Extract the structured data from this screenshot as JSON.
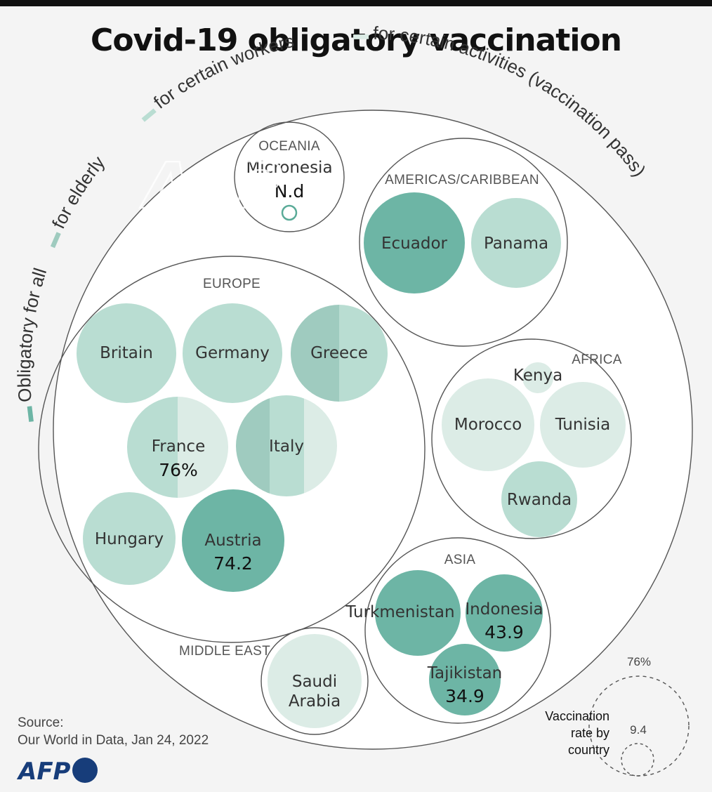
{
  "title": "Covid-19 obligatory vaccination",
  "colors": {
    "obligatory_for_all": "#6db5a5",
    "for_elderly": "#9fcbbf",
    "for_certain_workers": "#b9ddd2",
    "for_certain_activities": "#dcece6",
    "background": "#f4f4f4",
    "outline": "#555555",
    "afp_blue": "#173d7a"
  },
  "legend": [
    {
      "key": "obligatory_for_all",
      "label": "Obligatory  for all"
    },
    {
      "key": "for_elderly",
      "label": "for elderly"
    },
    {
      "key": "for_certain_workers",
      "label": "for certain workers"
    },
    {
      "key": "for_certain_activities",
      "label": "for certain activities (vaccination pass)"
    }
  ],
  "regions": {
    "oceania": "OCEANIA",
    "americas": "AMERICAS/CARIBBEAN",
    "europe": "EUROPE",
    "africa": "AFRICA",
    "asia": "ASIA",
    "middle_east": "MIDDLE EAST"
  },
  "countries": {
    "micronesia": {
      "name": "Micronesia",
      "value": "N.d"
    },
    "ecuador": {
      "name": "Ecuador"
    },
    "panama": {
      "name": "Panama"
    },
    "britain": {
      "name": "Britain"
    },
    "germany": {
      "name": "Germany"
    },
    "greece": {
      "name": "Greece"
    },
    "france": {
      "name": "France",
      "value": "76%"
    },
    "italy": {
      "name": "Italy"
    },
    "hungary": {
      "name": "Hungary"
    },
    "austria": {
      "name": "Austria",
      "value": "74.2"
    },
    "kenya": {
      "name": "Kenya"
    },
    "morocco": {
      "name": "Morocco"
    },
    "tunisia": {
      "name": "Tunisia"
    },
    "rwanda": {
      "name": "Rwanda"
    },
    "turkmenistan": {
      "name": "Turkmenistan"
    },
    "indonesia": {
      "name": "Indonesia",
      "value": "43.9"
    },
    "tajikistan": {
      "name": "Tajikistan",
      "value": "34.9"
    },
    "saudi_arabia": {
      "name_line1": "Saudi",
      "name_line2": "Arabia"
    }
  },
  "source": {
    "line1": "Source:",
    "line2": "Our World in Data, Jan 24, 2022"
  },
  "size_key": {
    "max_value": "76%",
    "min_value": "9.4",
    "label_line1": "Vaccination",
    "label_line2": "rate by",
    "label_line3": "country"
  },
  "logo_text": "AFP",
  "watermark": "AFP"
}
